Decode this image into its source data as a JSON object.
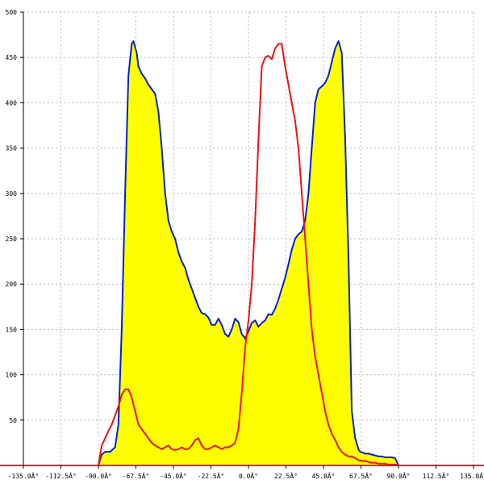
{
  "chart_data": {
    "type": "area",
    "title": "",
    "xlabel": "",
    "ylabel": "",
    "xlim": [
      -135,
      135
    ],
    "ylim": [
      0,
      500
    ],
    "grid": true,
    "legend": "none",
    "colors": {
      "fill": "#ffff00",
      "outline": "#0022cc",
      "line": "#ee1111",
      "axis": "#000000",
      "baseline": "#ff0000",
      "grid": "#bbbbbb"
    },
    "x_ticks": [
      {
        "value": -135,
        "label": "-135.0Â°"
      },
      {
        "value": -112.5,
        "label": "-112.5Â°"
      },
      {
        "value": -90,
        "label": "-90.0Â°"
      },
      {
        "value": -67.5,
        "label": "-67.5Â°"
      },
      {
        "value": -45,
        "label": "-45.0Â°"
      },
      {
        "value": -22.5,
        "label": "-22.5Â°"
      },
      {
        "value": 0,
        "label": "0.0Â°"
      },
      {
        "value": 22.5,
        "label": "22.5Â°"
      },
      {
        "value": 45,
        "label": "45.0Â°"
      },
      {
        "value": 67.5,
        "label": "67.5Â°"
      },
      {
        "value": 90,
        "label": "90.0Â°"
      },
      {
        "value": 112.5,
        "label": "112.5Â°"
      },
      {
        "value": 135,
        "label": "135.0Â°"
      }
    ],
    "y_ticks": [
      {
        "value": 50,
        "label": "50"
      },
      {
        "value": 100,
        "label": "100"
      },
      {
        "value": 150,
        "label": "150"
      },
      {
        "value": 200,
        "label": "200"
      },
      {
        "value": 250,
        "label": "250"
      },
      {
        "value": 300,
        "label": "300"
      },
      {
        "value": 350,
        "label": "350"
      },
      {
        "value": 400,
        "label": "400"
      },
      {
        "value": 450,
        "label": "450"
      },
      {
        "value": 500,
        "label": "500"
      }
    ],
    "series": [
      {
        "x": [
          -90,
          -88,
          -86,
          -83,
          -80,
          -78,
          -76,
          -74,
          -72,
          -70,
          -69,
          -67,
          -66,
          -64,
          -62,
          -60,
          -58,
          -56,
          -54,
          -52,
          -50,
          -48,
          -46,
          -44,
          -42,
          -40,
          -38,
          -36,
          -34,
          -32,
          -30,
          -28,
          -26,
          -24,
          -22,
          -20,
          -18,
          -16,
          -14,
          -12,
          -10,
          -8,
          -6,
          -4,
          -2,
          0,
          2,
          4,
          6,
          8,
          10,
          12,
          14,
          16,
          18,
          20,
          22,
          24,
          26,
          28,
          30,
          32,
          34,
          36,
          38,
          40,
          42,
          44,
          46,
          48,
          50,
          52,
          54,
          56,
          58,
          60,
          62,
          64,
          66,
          67,
          69,
          70,
          72,
          74,
          76,
          78,
          80,
          82,
          84,
          86,
          88,
          90
        ],
        "y": [
          0,
          12,
          15,
          15,
          20,
          45,
          150,
          300,
          430,
          465,
          468,
          455,
          440,
          432,
          427,
          420,
          415,
          410,
          390,
          350,
          300,
          270,
          258,
          250,
          235,
          225,
          218,
          205,
          195,
          185,
          175,
          168,
          167,
          163,
          155,
          155,
          162,
          155,
          145,
          142,
          150,
          162,
          158,
          145,
          140,
          148,
          157,
          160,
          153,
          157,
          160,
          167,
          166,
          173,
          183,
          195,
          207,
          222,
          238,
          250,
          255,
          258,
          270,
          300,
          350,
          400,
          415,
          418,
          422,
          430,
          445,
          460,
          468,
          455,
          360,
          230,
          60,
          30,
          18,
          15,
          14,
          13,
          13,
          12,
          11,
          10,
          10,
          9,
          9,
          9,
          8,
          0
        ]
      },
      {
        "x": [
          -90,
          -88,
          -86,
          -84,
          -82,
          -80,
          -78,
          -76,
          -74,
          -72,
          -70,
          -68,
          -66,
          -64,
          -62,
          -60,
          -58,
          -56,
          -54,
          -52,
          -50,
          -48,
          -46,
          -44,
          -42,
          -40,
          -38,
          -36,
          -34,
          -32,
          -30,
          -28,
          -26,
          -24,
          -22,
          -20,
          -18,
          -16,
          -14,
          -12,
          -10,
          -8,
          -6,
          -4,
          -2,
          0,
          2,
          4,
          6,
          8,
          10,
          12,
          14,
          16,
          18,
          20,
          22,
          24,
          26,
          28,
          30,
          32,
          34,
          36,
          38,
          40,
          42,
          44,
          46,
          48,
          50,
          52,
          54,
          56,
          58,
          60,
          62,
          64,
          66,
          68,
          70,
          72,
          74,
          76,
          78,
          80,
          82,
          84,
          86,
          88,
          90
        ],
        "y": [
          0,
          22,
          30,
          38,
          45,
          55,
          65,
          78,
          84,
          84,
          75,
          60,
          45,
          40,
          35,
          30,
          25,
          22,
          20,
          18,
          20,
          22,
          18,
          17,
          18,
          20,
          18,
          18,
          22,
          28,
          30,
          22,
          18,
          18,
          20,
          22,
          20,
          18,
          20,
          20,
          22,
          25,
          40,
          80,
          130,
          160,
          200,
          270,
          360,
          440,
          450,
          452,
          448,
          460,
          465,
          465,
          440,
          420,
          400,
          380,
          350,
          300,
          250,
          200,
          150,
          120,
          100,
          80,
          60,
          45,
          35,
          28,
          20,
          15,
          12,
          10,
          10,
          8,
          6,
          5,
          5,
          4,
          3,
          3,
          2,
          2,
          2,
          1,
          1,
          1,
          0
        ]
      }
    ]
  }
}
